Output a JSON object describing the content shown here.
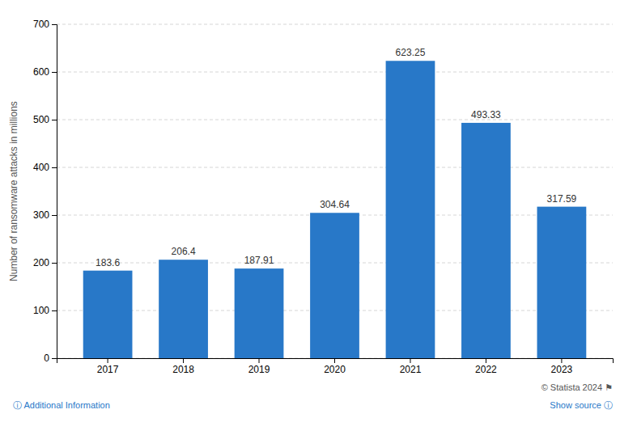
{
  "chart_data": {
    "type": "bar",
    "ylabel": "Number of ransomware attacks in millions",
    "categories": [
      "2017",
      "2018",
      "2019",
      "2020",
      "2021",
      "2022",
      "2023"
    ],
    "values": [
      183.6,
      206.4,
      187.91,
      304.64,
      623.25,
      493.33,
      317.59
    ],
    "color": "#2878C8",
    "ylim": [
      0,
      700
    ],
    "yticks": [
      0,
      100,
      200,
      300,
      400,
      500,
      600,
      700
    ],
    "grid": true,
    "data_labels": true,
    "annotations": [
      "© Statista 2024  ⚑",
      "Show source  ⓘ",
      "ⓘ  Additional Information"
    ]
  }
}
